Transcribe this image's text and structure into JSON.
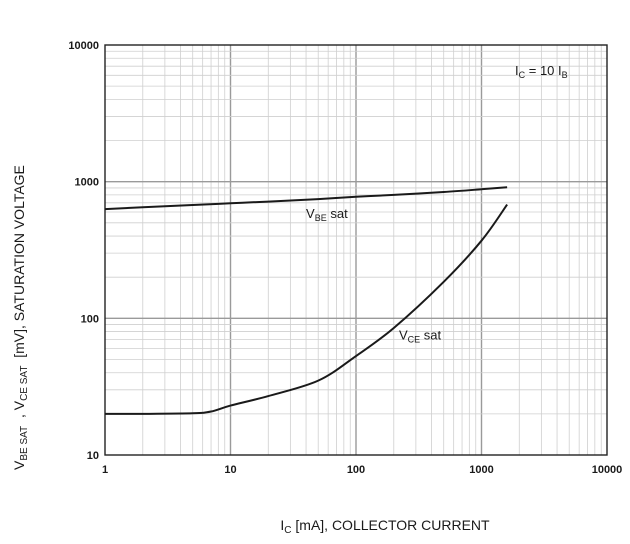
{
  "chart_data": {
    "type": "line",
    "title": "",
    "x_scale": "log",
    "y_scale": "log",
    "xlim": [
      1,
      10000
    ],
    "ylim": [
      10,
      10000
    ],
    "grid": true,
    "xlabel": {
      "main": "I",
      "sub": "C",
      "rest": " [mA], COLLECTOR CURRENT"
    },
    "ylabel": {
      "p1": "V",
      "s1": "BE SAT",
      "p2": "  , V",
      "s2": "CE SAT",
      "p3": "  [mV], SATURATION VOLTAGE"
    },
    "x_ticks": [
      {
        "value": 1,
        "label": "1"
      },
      {
        "value": 10,
        "label": "10"
      },
      {
        "value": 100,
        "label": "100"
      },
      {
        "value": 1000,
        "label": "1000"
      },
      {
        "value": 10000,
        "label": "10000"
      }
    ],
    "y_ticks": [
      {
        "value": 10,
        "label": "10"
      },
      {
        "value": 100,
        "label": "100"
      },
      {
        "value": 1000,
        "label": "1000"
      },
      {
        "value": 10000,
        "label": "10000"
      }
    ],
    "condition": {
      "p1": "I",
      "s1": "C",
      "p2": " = 10 I",
      "s2": "B"
    },
    "series": [
      {
        "name": "VBE sat",
        "label": {
          "main": "V",
          "sub": "BE",
          "rest": " sat"
        },
        "color": "#1a1a1a",
        "x": [
          1,
          2,
          5,
          10,
          20,
          50,
          100,
          200,
          500,
          1000,
          1600
        ],
        "y": [
          630,
          650,
          675,
          695,
          715,
          745,
          775,
          800,
          840,
          880,
          910
        ],
        "label_at": {
          "x": 40,
          "y": 540
        }
      },
      {
        "name": "VCE sat",
        "label": {
          "main": "V",
          "sub": "CE",
          "rest": " sat"
        },
        "color": "#1a1a1a",
        "x": [
          1,
          2,
          5,
          7,
          10,
          20,
          50,
          100,
          200,
          500,
          1000,
          1600
        ],
        "y": [
          20,
          20,
          20.2,
          20.8,
          23,
          27,
          35,
          53,
          85,
          185,
          370,
          680
        ],
        "label_at": {
          "x": 220,
          "y": 70
        }
      }
    ]
  }
}
